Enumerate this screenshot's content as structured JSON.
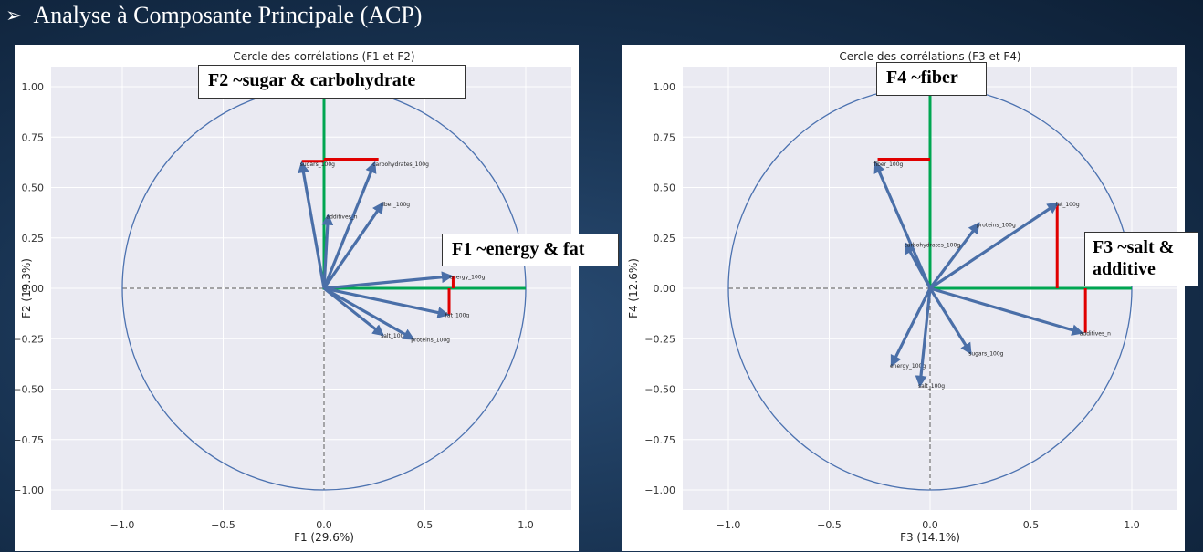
{
  "slide": {
    "title": "Analyse à Composante Principale (ACP)"
  },
  "callouts": {
    "f2": "F2 ~sugar & carbohydrate",
    "f1": "F1 ~energy & fat",
    "f4": "F4 ~fiber",
    "f3_line1": "F3 ~salt &",
    "f3_line2": "additive"
  },
  "chart_data": [
    {
      "type": "scatter",
      "title": "Cercle des corrélations (F1 et F2)",
      "xlabel": "F1 (29.6%)",
      "ylabel": "F2 (19.3%)",
      "xlim": [
        -1.0,
        1.0
      ],
      "ylim": [
        -1.0,
        1.0
      ],
      "xticks": [
        "−1.0",
        "−0.5",
        "0.0",
        "0.5",
        "1.0"
      ],
      "yticks": [
        "1.00",
        "0.75",
        "0.50",
        "0.25",
        "0.00",
        "−0.25",
        "−0.50",
        "−0.75",
        "−1.00"
      ],
      "grid": true,
      "unit_circle": true,
      "vectors": [
        {
          "label": "sugars_100g",
          "x": -0.11,
          "y": 0.62
        },
        {
          "label": "carbohydrates_100g",
          "x": 0.25,
          "y": 0.62
        },
        {
          "label": "additives_n",
          "x": 0.02,
          "y": 0.36
        },
        {
          "label": "fiber_100g",
          "x": 0.29,
          "y": 0.42
        },
        {
          "label": "energy_100g",
          "x": 0.63,
          "y": 0.06
        },
        {
          "label": "fat_100g",
          "x": 0.61,
          "y": -0.13
        },
        {
          "label": "salt_100g",
          "x": 0.29,
          "y": -0.23
        },
        {
          "label": "proteins_100g",
          "x": 0.44,
          "y": -0.25
        }
      ],
      "highlights": [
        {
          "color": "#00a651",
          "points": [
            [
              1.0,
              0.0
            ],
            [
              0.0,
              0.0
            ],
            [
              0.0,
              1.0
            ]
          ]
        },
        {
          "color": "#e00000",
          "points": [
            [
              -0.11,
              0.63
            ],
            [
              0.0,
              0.63
            ]
          ]
        },
        {
          "color": "#e00000",
          "points": [
            [
              0.0,
              0.64
            ],
            [
              0.27,
              0.64
            ]
          ]
        },
        {
          "color": "#e00000",
          "points": [
            [
              0.64,
              0.06
            ],
            [
              0.64,
              0.0
            ]
          ]
        },
        {
          "color": "#e00000",
          "points": [
            [
              0.62,
              0.0
            ],
            [
              0.62,
              -0.13
            ]
          ]
        }
      ]
    },
    {
      "type": "scatter",
      "title": "Cercle des corrélations (F3 et F4)",
      "xlabel": "F3 (14.1%)",
      "ylabel": "F4 (12.6%)",
      "xlim": [
        -1.0,
        1.0
      ],
      "ylim": [
        -1.0,
        1.0
      ],
      "xticks": [
        "−1.0",
        "−0.5",
        "0.0",
        "0.5",
        "1.0"
      ],
      "yticks": [
        "1.00",
        "0.75",
        "0.50",
        "0.25",
        "0.00",
        "−0.25",
        "−0.50",
        "−0.75",
        "−1.00"
      ],
      "grid": true,
      "unit_circle": true,
      "vectors": [
        {
          "label": "fiber_100g",
          "x": -0.27,
          "y": 0.62
        },
        {
          "label": "proteins_100g",
          "x": 0.24,
          "y": 0.32
        },
        {
          "label": "carbohydrates_100g",
          "x": -0.12,
          "y": 0.22
        },
        {
          "label": "fat_100g",
          "x": 0.63,
          "y": 0.42
        },
        {
          "label": "additives_n",
          "x": 0.75,
          "y": -0.22
        },
        {
          "label": "sugars_100g",
          "x": 0.2,
          "y": -0.32
        },
        {
          "label": "energy_100g",
          "x": -0.19,
          "y": -0.38
        },
        {
          "label": "salt_100g",
          "x": -0.05,
          "y": -0.48
        }
      ],
      "highlights": [
        {
          "color": "#00a651",
          "points": [
            [
              1.0,
              0.0
            ],
            [
              0.0,
              0.0
            ],
            [
              0.0,
              1.0
            ]
          ]
        },
        {
          "color": "#e00000",
          "points": [
            [
              -0.26,
              0.64
            ],
            [
              0.0,
              0.64
            ]
          ]
        },
        {
          "color": "#e00000",
          "points": [
            [
              0.63,
              0.42
            ],
            [
              0.63,
              0.0
            ]
          ]
        },
        {
          "color": "#e00000",
          "points": [
            [
              0.77,
              0.0
            ],
            [
              0.77,
              -0.22
            ]
          ]
        }
      ]
    }
  ]
}
